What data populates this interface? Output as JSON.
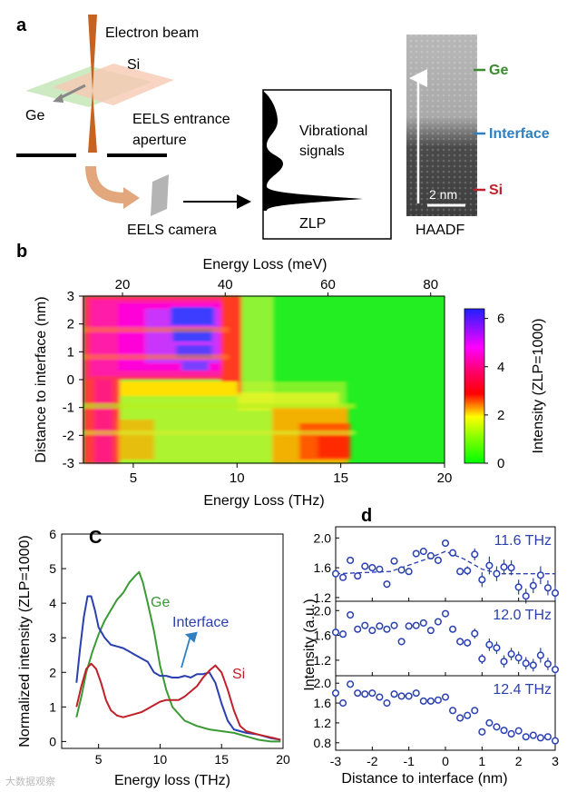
{
  "panel_labels": {
    "a": "a",
    "b": "b",
    "c": "C",
    "d": "d"
  },
  "panel_a": {
    "electron_beam": "Electron beam",
    "si": "Si",
    "ge": "Ge",
    "eels_aperture_line1": "EELS entrance",
    "eels_aperture_line2": "aperture",
    "eels_camera": "EELS camera",
    "vibrational_line1": "Vibrational",
    "vibrational_line2": "signals",
    "zlp": "ZLP",
    "haadf": "HAADF",
    "scale_bar": "2 nm",
    "marker_ge": "Ge",
    "marker_interface": "Interface",
    "marker_si": "Si",
    "colors": {
      "ge": "#3a8a2e",
      "interface": "#2f7fc1",
      "si": "#c0202a",
      "beam": "#c8621f"
    }
  },
  "chart_data": [
    {
      "id": "b",
      "type": "heatmap",
      "title": "",
      "top_axis_label": "Energy Loss (meV)",
      "top_ticks": [
        20,
        40,
        60,
        80
      ],
      "top_range": [
        12.4,
        82.7
      ],
      "xlabel": "Energy Loss (THz)",
      "xticks": [
        5,
        10,
        15,
        20
      ],
      "xlim": [
        2.6,
        20
      ],
      "ylabel": "Distance to interface (nm)",
      "yticks": [
        3,
        2,
        1,
        0,
        -1,
        -2,
        -3
      ],
      "ylim": [
        -3,
        3
      ],
      "colorbar_label": "Intensity (ZLP=1000)",
      "colorbar_ticks": [
        0,
        2,
        4,
        6
      ],
      "colorbar_range": [
        0,
        6.4
      ]
    },
    {
      "id": "c",
      "type": "line",
      "xlabel": "Energy loss (THz)",
      "ylabel": "Normalized intensity (ZLP=1000)",
      "xlim": [
        2,
        20
      ],
      "ylim": [
        -0.2,
        6
      ],
      "xticks": [
        5,
        10,
        15,
        20
      ],
      "yticks": [
        0,
        1,
        2,
        3,
        4,
        5,
        6
      ],
      "series": [
        {
          "name": "Ge",
          "color": "#3a9a35",
          "x": [
            3.2,
            3.6,
            4.0,
            4.5,
            5.0,
            5.5,
            6.0,
            6.5,
            7.0,
            7.5,
            8.0,
            8.3,
            8.6,
            9.0,
            9.5,
            10.0,
            10.5,
            11.0,
            12.0,
            13.0,
            14.0,
            15.0,
            16.0,
            17.0,
            18.0,
            19.0,
            19.8
          ],
          "y": [
            0.7,
            1.3,
            2.0,
            2.6,
            3.1,
            3.5,
            3.8,
            4.1,
            4.3,
            4.6,
            4.8,
            4.9,
            4.6,
            4.0,
            3.2,
            2.2,
            1.5,
            1.0,
            0.6,
            0.45,
            0.35,
            0.3,
            0.25,
            0.15,
            0.05,
            0.0,
            0.0
          ]
        },
        {
          "name": "Interface",
          "color": "#2a3fb0",
          "x": [
            3.2,
            3.5,
            3.8,
            4.1,
            4.4,
            4.7,
            5.0,
            5.5,
            6.0,
            6.5,
            7.0,
            7.5,
            8.0,
            8.5,
            9.0,
            9.5,
            10.0,
            10.5,
            11.0,
            11.5,
            12.0,
            12.5,
            13.0,
            13.5,
            14.0,
            14.5,
            15.0,
            15.5,
            16.0,
            17.0,
            18.0,
            19.0,
            19.8
          ],
          "y": [
            1.7,
            2.7,
            3.6,
            4.2,
            4.2,
            3.8,
            3.3,
            3.0,
            2.8,
            2.75,
            2.7,
            2.6,
            2.5,
            2.4,
            2.3,
            2.0,
            1.9,
            1.9,
            1.85,
            1.85,
            1.9,
            1.85,
            1.95,
            1.95,
            2.0,
            1.7,
            1.1,
            0.6,
            0.35,
            0.25,
            0.2,
            0.1,
            0.05
          ]
        },
        {
          "name": "Si",
          "color": "#c0202a",
          "x": [
            3.2,
            3.6,
            4.0,
            4.4,
            4.8,
            5.2,
            5.6,
            6.0,
            6.5,
            7.0,
            7.5,
            8.0,
            8.5,
            9.0,
            9.5,
            10.0,
            10.5,
            11.0,
            11.5,
            12.0,
            12.5,
            13.0,
            13.5,
            14.0,
            14.5,
            15.0,
            15.5,
            16.0,
            16.5,
            17.0,
            18.0,
            19.0,
            19.8
          ],
          "y": [
            1.0,
            1.6,
            2.1,
            2.25,
            2.1,
            1.7,
            1.2,
            0.9,
            0.75,
            0.7,
            0.75,
            0.8,
            0.85,
            0.95,
            1.05,
            1.15,
            1.2,
            1.2,
            1.2,
            1.3,
            1.45,
            1.6,
            1.85,
            2.05,
            2.2,
            2.0,
            1.5,
            0.9,
            0.45,
            0.3,
            0.2,
            0.12,
            0.05
          ]
        }
      ],
      "annotations": {
        "ge": "Ge",
        "interface": "Interface",
        "si": "Si"
      }
    },
    {
      "id": "d",
      "type": "scatter",
      "xlabel": "Distance to interface (nm)",
      "ylabel": "Intensity (a.u.)",
      "xlim": [
        -3,
        3
      ],
      "xticks": [
        -3,
        -2,
        -1,
        0,
        1,
        2,
        3
      ],
      "color": "#2a3fb0",
      "subplots": [
        {
          "label": "11.6 THz",
          "ylim": [
            1.15,
            2.15
          ],
          "yticks": [
            1.2,
            1.6,
            2.0
          ],
          "x": [
            -3.0,
            -2.8,
            -2.6,
            -2.4,
            -2.2,
            -2.0,
            -1.8,
            -1.6,
            -1.4,
            -1.2,
            -1.0,
            -0.8,
            -0.6,
            -0.4,
            -0.2,
            0.0,
            0.2,
            0.4,
            0.6,
            0.8,
            1.0,
            1.2,
            1.4,
            1.6,
            1.8,
            2.0,
            2.2,
            2.4,
            2.6,
            2.8,
            3.0
          ],
          "y": [
            1.52,
            1.47,
            1.7,
            1.49,
            1.62,
            1.6,
            1.58,
            1.38,
            1.69,
            1.57,
            1.55,
            1.79,
            1.82,
            1.76,
            1.7,
            1.93,
            1.8,
            1.55,
            1.56,
            1.78,
            1.44,
            1.63,
            1.52,
            1.61,
            1.6,
            1.34,
            1.22,
            1.36,
            1.5,
            1.33,
            1.26
          ],
          "err": [
            0.03,
            0.03,
            0.03,
            0.03,
            0.03,
            0.03,
            0.03,
            0.03,
            0.03,
            0.03,
            0.03,
            0.03,
            0.03,
            0.03,
            0.03,
            0.03,
            0.05,
            0.05,
            0.06,
            0.08,
            0.1,
            0.12,
            0.1,
            0.1,
            0.1,
            0.1,
            0.1,
            0.1,
            0.12,
            0.1,
            0.1
          ],
          "fit_x": [
            -3.0,
            -1.5,
            -0.5,
            0.0,
            0.5,
            1.0,
            1.5,
            3.0
          ],
          "fit_y": [
            1.52,
            1.55,
            1.72,
            1.82,
            1.72,
            1.58,
            1.52,
            1.52
          ]
        },
        {
          "label": "12.0 THz",
          "ylim": [
            0.95,
            2.15
          ],
          "yticks": [
            1.2,
            1.6,
            2.0
          ],
          "x": [
            -3.0,
            -2.8,
            -2.6,
            -2.4,
            -2.2,
            -2.0,
            -1.8,
            -1.6,
            -1.4,
            -1.2,
            -1.0,
            -0.8,
            -0.6,
            -0.4,
            -0.2,
            0.0,
            0.2,
            0.4,
            0.6,
            0.8,
            1.0,
            1.2,
            1.4,
            1.6,
            1.8,
            2.0,
            2.2,
            2.4,
            2.6,
            2.8,
            3.0
          ],
          "y": [
            1.65,
            1.62,
            1.93,
            1.7,
            1.76,
            1.68,
            1.75,
            1.7,
            1.76,
            1.5,
            1.75,
            1.76,
            1.8,
            1.68,
            1.82,
            1.95,
            1.7,
            1.5,
            1.48,
            1.63,
            1.22,
            1.45,
            1.4,
            1.18,
            1.3,
            1.24,
            1.15,
            1.12,
            1.28,
            1.14,
            1.05
          ],
          "err": [
            0.04,
            0.04,
            0.04,
            0.04,
            0.04,
            0.04,
            0.04,
            0.04,
            0.04,
            0.04,
            0.04,
            0.04,
            0.04,
            0.04,
            0.04,
            0.05,
            0.05,
            0.06,
            0.06,
            0.08,
            0.08,
            0.1,
            0.1,
            0.1,
            0.1,
            0.1,
            0.1,
            0.1,
            0.12,
            0.1,
            0.1
          ]
        },
        {
          "label": "12.4 THz",
          "ylim": [
            0.65,
            2.15
          ],
          "yticks": [
            0.8,
            1.2,
            1.6,
            2.0
          ],
          "x": [
            -3.0,
            -2.8,
            -2.6,
            -2.4,
            -2.2,
            -2.0,
            -1.8,
            -1.6,
            -1.4,
            -1.2,
            -1.0,
            -0.8,
            -0.6,
            -0.4,
            -0.2,
            0.0,
            0.2,
            0.4,
            0.6,
            0.8,
            1.0,
            1.2,
            1.4,
            1.6,
            1.8,
            2.0,
            2.2,
            2.4,
            2.6,
            2.8,
            3.0
          ],
          "y": [
            1.8,
            1.6,
            1.98,
            1.8,
            1.78,
            1.8,
            1.72,
            1.6,
            1.78,
            1.74,
            1.74,
            1.8,
            1.64,
            1.64,
            1.66,
            1.72,
            1.45,
            1.3,
            1.35,
            1.45,
            1.02,
            1.2,
            1.12,
            1.05,
            0.98,
            1.04,
            0.92,
            0.95,
            0.9,
            0.92,
            0.84
          ],
          "err": [
            0.03,
            0.03,
            0.03,
            0.03,
            0.03,
            0.03,
            0.03,
            0.03,
            0.03,
            0.03,
            0.03,
            0.03,
            0.03,
            0.03,
            0.03,
            0.03,
            0.04,
            0.04,
            0.04,
            0.05,
            0.05,
            0.05,
            0.05,
            0.05,
            0.05,
            0.05,
            0.05,
            0.05,
            0.05,
            0.05,
            0.05
          ]
        }
      ]
    }
  ],
  "watermark": "大数据观察"
}
